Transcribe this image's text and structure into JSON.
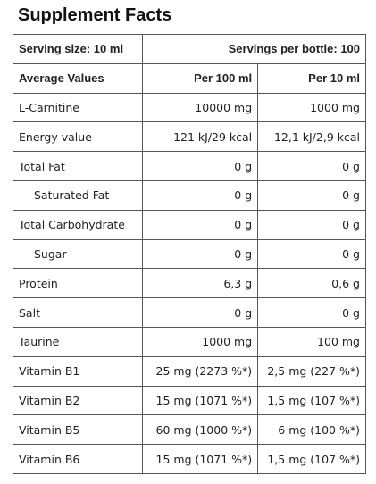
{
  "title": "Supplement Facts",
  "serving": {
    "size": "Serving size: 10 ml",
    "per_bottle": "Servings per bottle: 100"
  },
  "headers": {
    "name": "Average Values",
    "per100": "Per 100 ml",
    "per10": "Per 10 ml"
  },
  "rows": [
    {
      "name": "L-Carnitine",
      "per100": "10000 mg",
      "per10": "1000 mg"
    },
    {
      "name": "Energy value",
      "per100": "121 kJ/29 kcal",
      "per10": "12,1 kJ/2,9 kcal"
    },
    {
      "name": "Total Fat",
      "per100": "0 g",
      "per10": "0 g"
    },
    {
      "name": "Saturated Fat",
      "per100": "0 g",
      "per10": "0 g"
    },
    {
      "name": "Total Carbohydrate",
      "per100": "0 g",
      "per10": "0 g"
    },
    {
      "name": "Sugar",
      "per100": "0 g",
      "per10": "0 g"
    },
    {
      "name": "Protein",
      "per100": "6,3 g",
      "per10": "0,6 g"
    },
    {
      "name": "Salt",
      "per100": "0 g",
      "per10": "0 g"
    },
    {
      "name": "Taurine",
      "per100": "1000 mg",
      "per10": "100 mg"
    },
    {
      "name": "Vitamin B1",
      "per100": "25 mg (2273 %*)",
      "per10": "2,5 mg (227 %*)"
    },
    {
      "name": "Vitamin B2",
      "per100": "15 mg (1071 %*)",
      "per10": "1,5 mg (107 %*)"
    },
    {
      "name": "Vitamin B5",
      "per100": "60 mg (1000 %*)",
      "per10": "6 mg (100 %*)"
    },
    {
      "name": "Vitamin B6",
      "per100": "15 mg (1071 %*)",
      "per10": "1,5 mg (107 %*)"
    }
  ]
}
